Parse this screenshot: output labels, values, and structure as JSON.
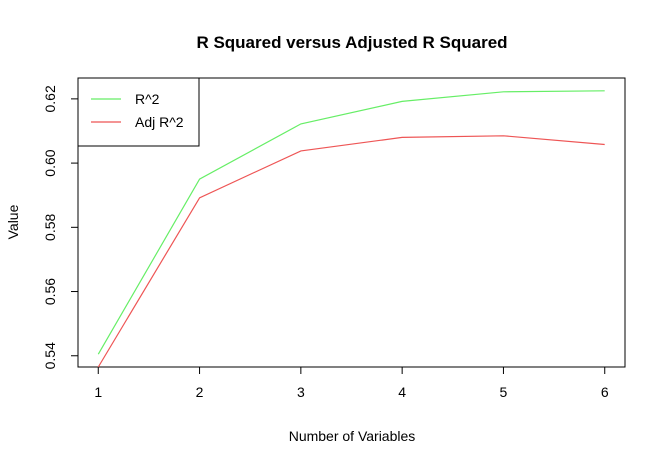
{
  "chart_data": {
    "type": "line",
    "title": "R Squared versus Adjusted R Squared",
    "xlabel": "Number of Variables",
    "ylabel": "Value",
    "x": [
      1,
      2,
      3,
      4,
      5,
      6
    ],
    "xticks": [
      "1",
      "2",
      "3",
      "4",
      "5",
      "6"
    ],
    "yticks": [
      "0.54",
      "0.56",
      "0.58",
      "0.60",
      "0.62"
    ],
    "xlim": [
      0.8,
      6.2
    ],
    "ylim": [
      0.5365,
      0.6265
    ],
    "grid": false,
    "legend_position": "top-left",
    "series": [
      {
        "name": "R^2",
        "color": "#66ee66",
        "values": [
          0.5405,
          0.595,
          0.6122,
          0.6192,
          0.6222,
          0.6225
        ]
      },
      {
        "name": "Adj R^2",
        "color": "#ee5555",
        "values": [
          0.5365,
          0.5892,
          0.6038,
          0.608,
          0.6085,
          0.6058
        ]
      }
    ]
  }
}
